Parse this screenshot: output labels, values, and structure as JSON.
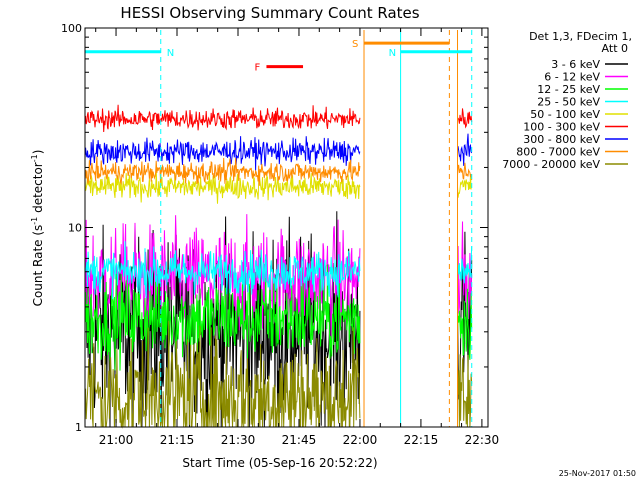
{
  "chart_data": {
    "type": "line",
    "title": "HESSI Observing Summary Count Rates",
    "xlabel": "Start Time (05-Sep-16 20:52:22)",
    "ylabel_main": "Count Rate (s",
    "ylabel_sup1": "-1",
    "ylabel_mid": " detector",
    "ylabel_sup2": "-1",
    "ylabel_end": ")",
    "yscale": "log",
    "ylim": [
      1,
      100
    ],
    "xlim": [
      "20:52:22",
      "22:31:30"
    ],
    "x_ticks": [
      "21:00",
      "21:15",
      "21:30",
      "21:45",
      "22:00",
      "22:15",
      "22:30"
    ],
    "y_ticks": [
      "1",
      "10",
      "100"
    ],
    "legend_header": [
      "Det 1,3, FDecim 1,",
      "Att 0"
    ],
    "legend_position": "right",
    "series": [
      {
        "name": "3 - 6 keV",
        "color": "#000000",
        "base": 3,
        "noise": 0.45
      },
      {
        "name": "6 - 12 keV",
        "color": "#ff00ff",
        "base": 5.5,
        "noise": 0.25
      },
      {
        "name": "12 - 25 keV",
        "color": "#00ff00",
        "base": 3.5,
        "noise": 0.2
      },
      {
        "name": "25 - 50 keV",
        "color": "#00ffff",
        "base": 6,
        "noise": 0.1
      },
      {
        "name": "50 - 100 keV",
        "color": "#e0e000",
        "base": 16,
        "noise": 0.06
      },
      {
        "name": "100 - 300 keV",
        "color": "#ff0000",
        "base": 35,
        "noise": 0.05
      },
      {
        "name": "300 - 800 keV",
        "color": "#0000ff",
        "base": 24,
        "noise": 0.06
      },
      {
        "name": "800 - 7000 keV",
        "color": "#ff8c00",
        "base": 19,
        "noise": 0.05
      },
      {
        "name": "7000 - 20000 keV",
        "color": "#8b8b00",
        "base": 1.4,
        "noise": 0.3
      }
    ],
    "segments": [
      {
        "start": "20:52:22",
        "end": "22:00:00"
      },
      {
        "start": "22:24:00",
        "end": "22:27:30"
      }
    ],
    "flags": [
      {
        "label": "N",
        "color": "#00ffff",
        "start": "20:52:22",
        "end": "21:11:00",
        "y": 76
      },
      {
        "label": "N",
        "color": "#00ffff",
        "start": "22:10:00",
        "end": "22:27:30",
        "y": 76
      },
      {
        "label": "F",
        "color": "#ff0000",
        "start": "21:37:00",
        "end": "21:46:00",
        "y": 64
      },
      {
        "label": "S",
        "color": "#ff8c00",
        "start": "22:01:00",
        "end": "22:22:00",
        "y": 84
      }
    ],
    "markers": [
      {
        "t": "21:11:00",
        "color": "#00ffff",
        "style": "dashed"
      },
      {
        "t": "22:01:00",
        "color": "#ff8c00",
        "style": "solid"
      },
      {
        "t": "22:10:00",
        "color": "#00ffff",
        "style": "solid"
      },
      {
        "t": "22:22:00",
        "color": "#ff8c00",
        "style": "dashed"
      },
      {
        "t": "22:24:00",
        "color": "#ff8c00",
        "style": "solid"
      },
      {
        "t": "22:27:30",
        "color": "#00ffff",
        "style": "dashed"
      }
    ]
  },
  "footer": {
    "timestamp": "25-Nov-2017 01:50"
  }
}
